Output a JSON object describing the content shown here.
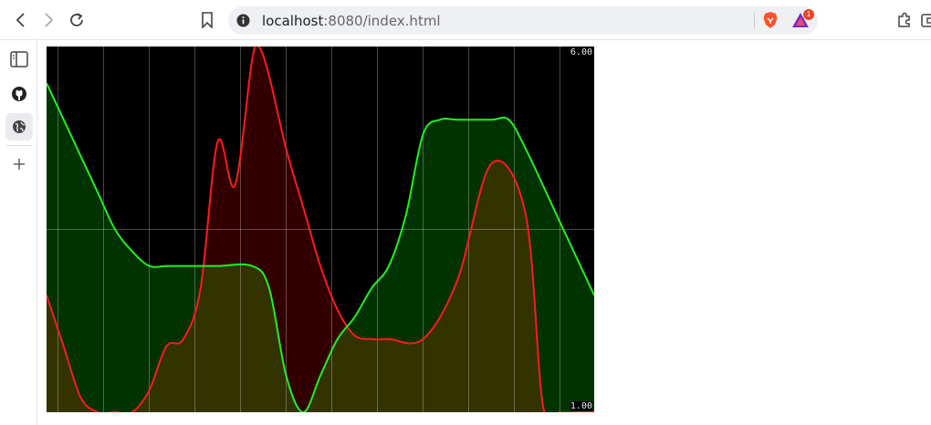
{
  "browser": {
    "url_host": "localhost",
    "url_rest": ":8080/index.html",
    "notification_count": "1"
  },
  "icons": {
    "back": "chevron-left",
    "forward": "chevron-right",
    "reload": "reload",
    "bookmark": "bookmark",
    "site_info": "info",
    "brave_shields": "brave-lion",
    "rewards": "triangle",
    "extensions": "puzzle",
    "sidebar_toggle": "sidebar-panel",
    "github": "github",
    "web": "globe",
    "add": "plus"
  },
  "chart_data": {
    "type": "area",
    "ylim": [
      1.0,
      6.0
    ],
    "y_tick_labels": [
      "6.00",
      "1.00"
    ],
    "grid": true,
    "vertical_gridlines": 12,
    "horizontal_gridlines": [
      3.5
    ],
    "series": [
      {
        "color": "#ff1a1a",
        "fill": "#3a0000",
        "points": [
          [
            0.0,
            2.6
          ],
          [
            0.5,
            1.9
          ],
          [
            1.0,
            1.2
          ],
          [
            1.5,
            1.0
          ],
          [
            2.0,
            1.0
          ],
          [
            2.5,
            1.0
          ],
          [
            3.0,
            1.3
          ],
          [
            3.5,
            1.9
          ],
          [
            4.0,
            2.0
          ],
          [
            4.5,
            2.7
          ],
          [
            5.0,
            4.7
          ],
          [
            5.5,
            4.1
          ],
          [
            6.0,
            5.8
          ],
          [
            6.2,
            6.0
          ],
          [
            6.5,
            5.6
          ],
          [
            7.0,
            4.6
          ],
          [
            7.5,
            3.8
          ],
          [
            8.0,
            3.0
          ],
          [
            8.5,
            2.4
          ],
          [
            9.0,
            2.05
          ],
          [
            9.5,
            2.0
          ],
          [
            10.0,
            2.0
          ],
          [
            11.0,
            2.0
          ],
          [
            12.0,
            2.8
          ],
          [
            13.0,
            4.4
          ],
          [
            14.0,
            3.7
          ],
          [
            14.5,
            1.1
          ],
          [
            15.0,
            1.0
          ],
          [
            15.5,
            1.0
          ],
          [
            16.0,
            1.0
          ]
        ]
      },
      {
        "color": "#22ee22",
        "fill": "#003300",
        "points": [
          [
            0.0,
            5.5
          ],
          [
            0.5,
            5.0
          ],
          [
            1.0,
            4.5
          ],
          [
            1.5,
            4.0
          ],
          [
            2.0,
            3.5
          ],
          [
            2.5,
            3.2
          ],
          [
            3.0,
            3.0
          ],
          [
            3.5,
            3.0
          ],
          [
            4.0,
            3.0
          ],
          [
            5.0,
            3.0
          ],
          [
            6.0,
            3.0
          ],
          [
            6.5,
            2.7
          ],
          [
            7.0,
            1.5
          ],
          [
            7.5,
            1.0
          ],
          [
            8.0,
            1.5
          ],
          [
            8.5,
            2.0
          ],
          [
            9.0,
            2.3
          ],
          [
            9.5,
            2.7
          ],
          [
            10.0,
            3.0
          ],
          [
            10.5,
            3.7
          ],
          [
            11.0,
            4.8
          ],
          [
            11.5,
            5.0
          ],
          [
            12.0,
            5.0
          ],
          [
            13.0,
            5.0
          ],
          [
            13.5,
            5.0
          ],
          [
            14.0,
            4.6
          ],
          [
            15.0,
            3.6
          ],
          [
            16.0,
            2.6
          ]
        ]
      }
    ]
  }
}
